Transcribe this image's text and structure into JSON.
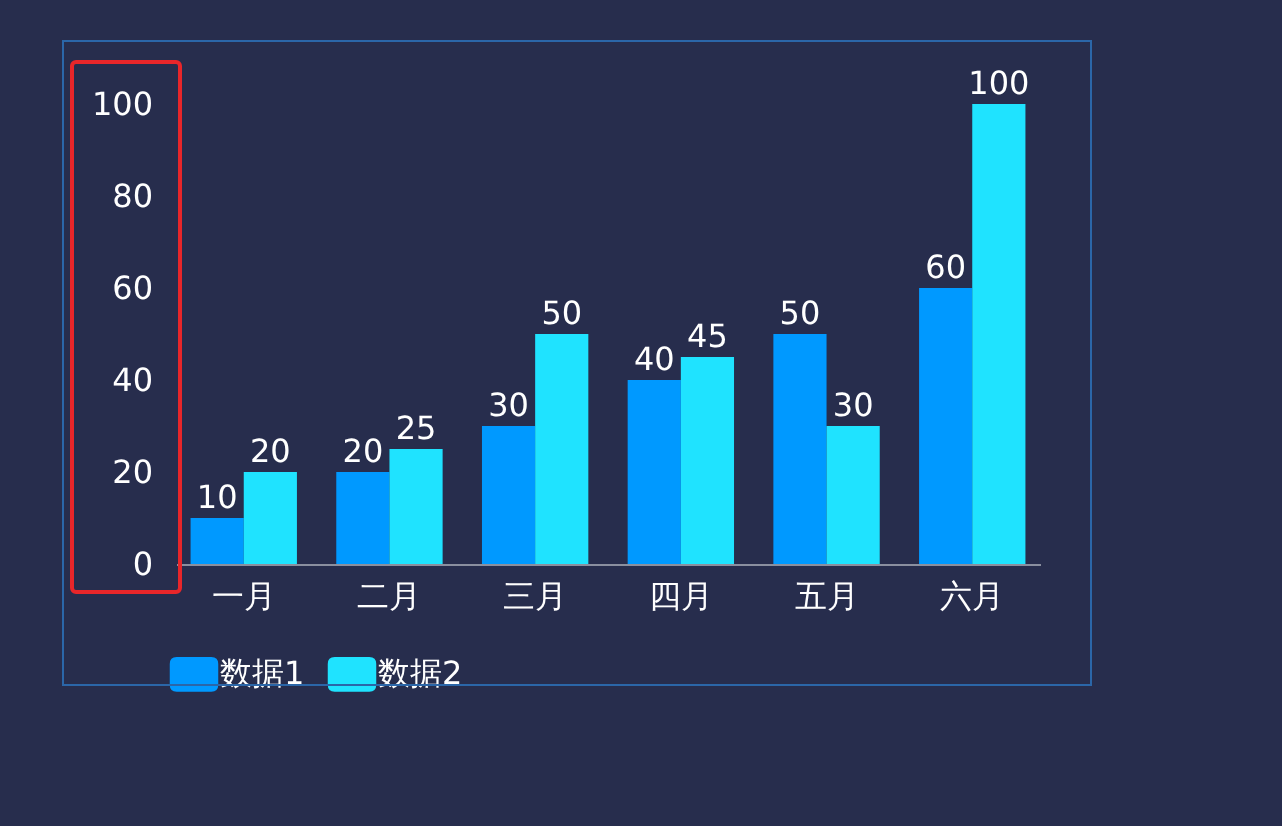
{
  "chart_data": {
    "type": "bar",
    "categories": [
      "一月",
      "二月",
      "三月",
      "四月",
      "五月",
      "六月"
    ],
    "series": [
      {
        "name": "数据1",
        "color": "#0099ff",
        "values": [
          10,
          20,
          30,
          40,
          50,
          60
        ]
      },
      {
        "name": "数据2",
        "color": "#1fe3ff",
        "values": [
          20,
          25,
          50,
          45,
          30,
          100
        ]
      }
    ],
    "ylim": [
      0,
      100
    ],
    "yticks": [
      0,
      20,
      40,
      60,
      80,
      100
    ],
    "data_labels": true,
    "legend": "bottom",
    "grid": false
  }
}
